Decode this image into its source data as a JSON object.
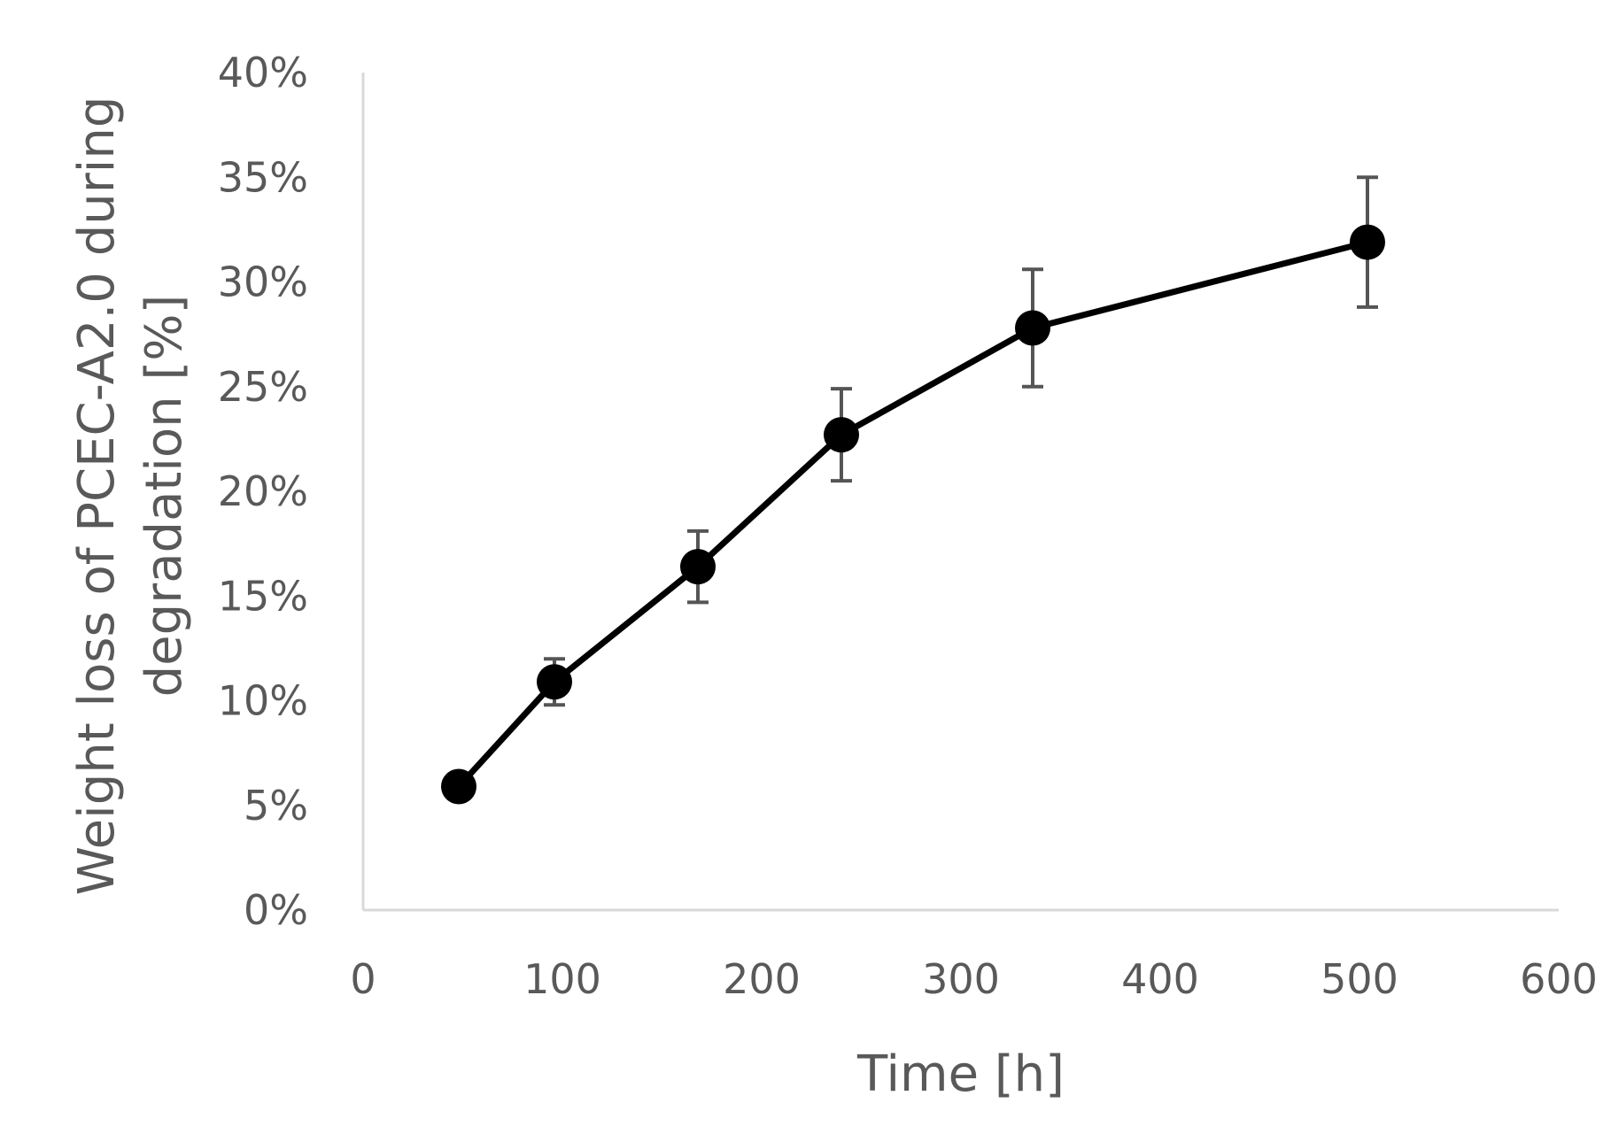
{
  "chart_data": {
    "type": "line",
    "title": "",
    "xlabel": "Time [h]",
    "ylabel_lines": [
      "Weight loss of PCEC-A2.0 during",
      "degradation [%]"
    ],
    "xlim": [
      0,
      600
    ],
    "ylim": [
      0,
      40
    ],
    "x_ticks": [
      0,
      100,
      200,
      300,
      400,
      500,
      600
    ],
    "x_tick_labels": [
      "0",
      "100",
      "200",
      "300",
      "400",
      "500",
      "600"
    ],
    "y_ticks": [
      0,
      5,
      10,
      15,
      20,
      25,
      30,
      35,
      40
    ],
    "y_tick_labels": [
      "0%",
      "5%",
      "10%",
      "15%",
      "20%",
      "25%",
      "30%",
      "35%",
      "40%"
    ],
    "grid": false,
    "legend": "none",
    "series": [
      {
        "x": [
          48,
          96,
          168,
          240,
          336,
          504
        ],
        "y": [
          5.9,
          10.9,
          16.4,
          22.7,
          27.8,
          31.9
        ],
        "error": [
          0.0,
          1.1,
          1.7,
          2.2,
          2.8,
          3.1
        ],
        "color": "#000000",
        "errorbar_color": "#555555"
      }
    ],
    "axis_color": "#d9d9d9",
    "text_color": "#595959"
  }
}
